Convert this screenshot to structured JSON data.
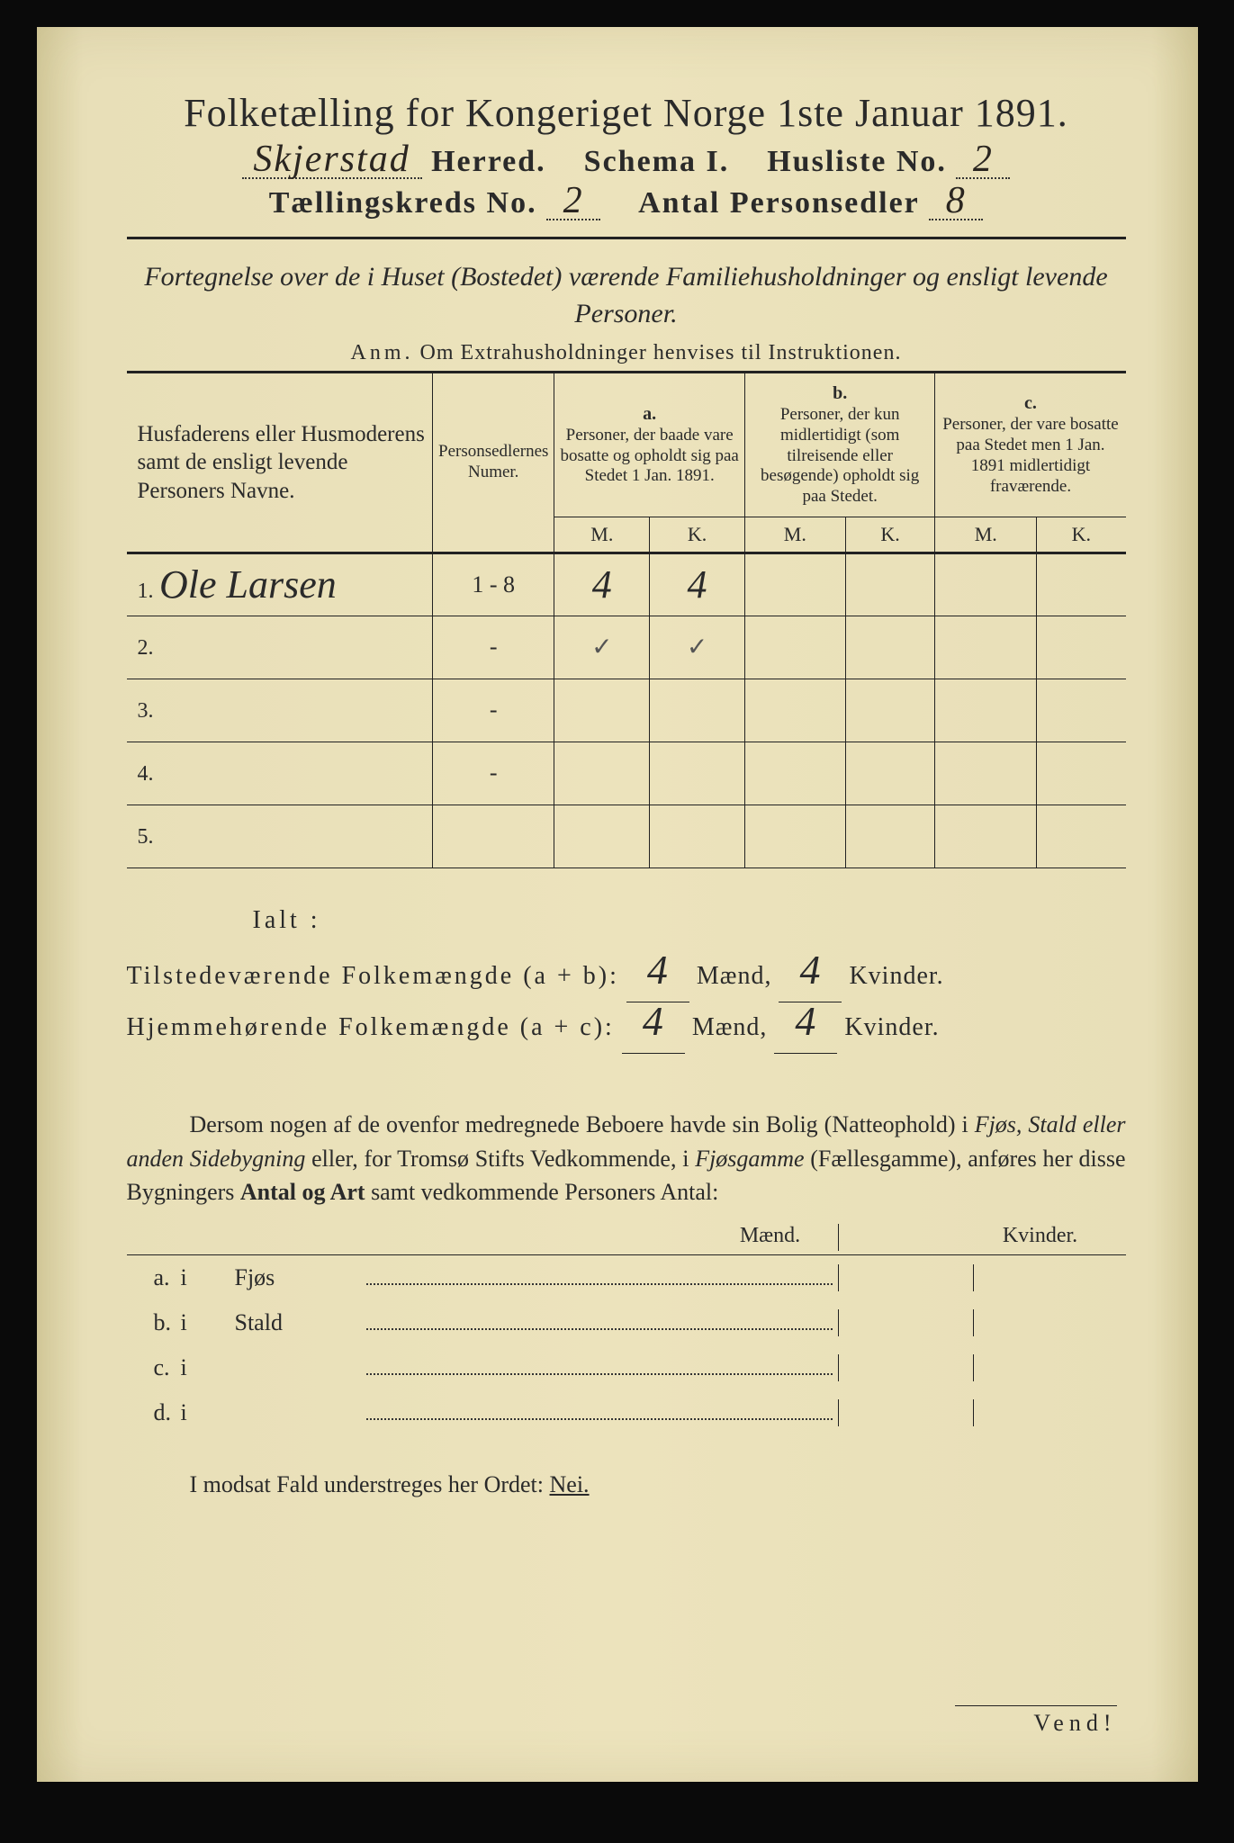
{
  "header": {
    "main_title": "Folketælling for Kongeriget Norge 1ste Januar 1891.",
    "herred_value": "Skjerstad",
    "herred_label": "Herred.",
    "schema_label": "Schema I.",
    "husliste_label": "Husliste No.",
    "husliste_value": "2",
    "kreds_label": "Tællingskreds No.",
    "kreds_value": "2",
    "personsedler_label": "Antal Personsedler",
    "personsedler_value": "8"
  },
  "subtitle": "Fortegnelse over de i Huset (Bostedet) værende Familiehusholdninger og ensligt levende Personer.",
  "anm_label": "Anm.",
  "anm_text": "Om Extrahusholdninger henvises til Instruktionen.",
  "table": {
    "col1_header": "Husfaderens eller Husmoderens samt de ensligt levende Personers Navne.",
    "col2_header": "Personsedlernes Numer.",
    "col_a_label": "a.",
    "col_a_desc": "Personer, der baade vare bosatte og opholdt sig paa Stedet 1 Jan. 1891.",
    "col_b_label": "b.",
    "col_b_desc": "Personer, der kun midlertidigt (som tilreisende eller besøgende) opholdt sig paa Stedet.",
    "col_c_label": "c.",
    "col_c_desc": "Personer, der vare bosatte paa Stedet men 1 Jan. 1891 midlertidigt fraværende.",
    "mk_m": "M.",
    "mk_k": "K.",
    "rows": [
      {
        "n": "1.",
        "name": "Ole Larsen",
        "numer": "1 - 8",
        "a_m": "4",
        "a_k": "4",
        "b_m": "",
        "b_k": "",
        "c_m": "",
        "c_k": ""
      },
      {
        "n": "2.",
        "name": "",
        "numer": "-",
        "a_m": "✓",
        "a_k": "✓",
        "b_m": "",
        "b_k": "",
        "c_m": "",
        "c_k": ""
      },
      {
        "n": "3.",
        "name": "",
        "numer": "-",
        "a_m": "",
        "a_k": "",
        "b_m": "",
        "b_k": "",
        "c_m": "",
        "c_k": ""
      },
      {
        "n": "4.",
        "name": "",
        "numer": "-",
        "a_m": "",
        "a_k": "",
        "b_m": "",
        "b_k": "",
        "c_m": "",
        "c_k": ""
      },
      {
        "n": "5.",
        "name": "",
        "numer": "",
        "a_m": "",
        "a_k": "",
        "b_m": "",
        "b_k": "",
        "c_m": "",
        "c_k": ""
      }
    ]
  },
  "totals": {
    "ialt": "Ialt :",
    "line1_label": "Tilstedeværende Folkemængde (a + b):",
    "line1_m": "4",
    "line1_k": "4",
    "line2_label": "Hjemmehørende Folkemængde (a + c):",
    "line2_m": "4",
    "line2_k": "4",
    "maend": "Mænd,",
    "kvinder": "Kvinder."
  },
  "paragraph": {
    "text_pre": "Dersom nogen af de ovenfor medregnede Beboere havde sin Bolig (Natteophold) i ",
    "it1": "Fjøs, Stald eller anden Sidebygning",
    "text_mid1": " eller, for Tromsø Stifts Vedkommende, i ",
    "it2": "Fjøsgamme",
    "text_mid2": " (Fællesgamme), anføres her disse Bygningers ",
    "bold1": "Antal og Art",
    "text_end": " samt vedkommende Personers Antal:"
  },
  "buildings": {
    "maend": "Mænd.",
    "kvinder": "Kvinder.",
    "rows": [
      {
        "lbl": "a.",
        "i": "i",
        "name": "Fjøs"
      },
      {
        "lbl": "b.",
        "i": "i",
        "name": "Stald"
      },
      {
        "lbl": "c.",
        "i": "i",
        "name": ""
      },
      {
        "lbl": "d.",
        "i": "i",
        "name": ""
      }
    ]
  },
  "final_line_pre": "I modsat Fald understreges her Ordet: ",
  "final_line_nei": "Nei.",
  "vend": "Vend!",
  "colors": {
    "paper": "#e8dfb8",
    "ink": "#2a2a2a",
    "background": "#0a0a0a"
  }
}
